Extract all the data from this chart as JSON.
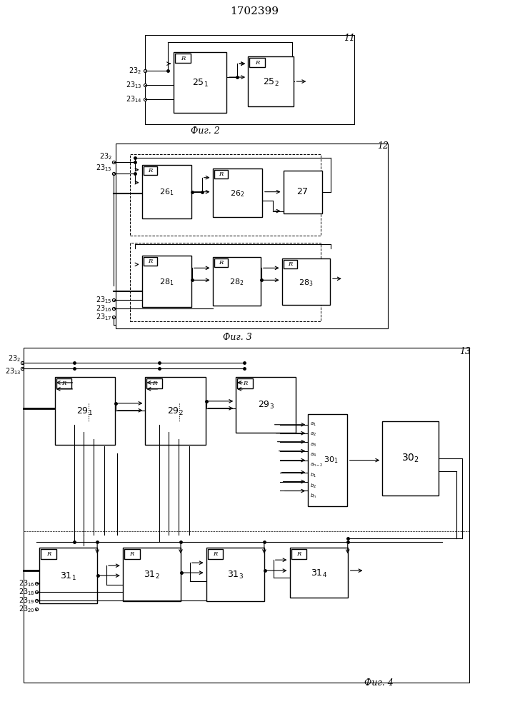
{
  "title": "1702399",
  "background": "#ffffff",
  "fig2_label": "11",
  "fig3_label": "12",
  "fig4_label": "13",
  "fig2_caption": "Фиг. 2",
  "fig3_caption": "Фиг. 3",
  "fig4_caption": "Фиг. 4"
}
